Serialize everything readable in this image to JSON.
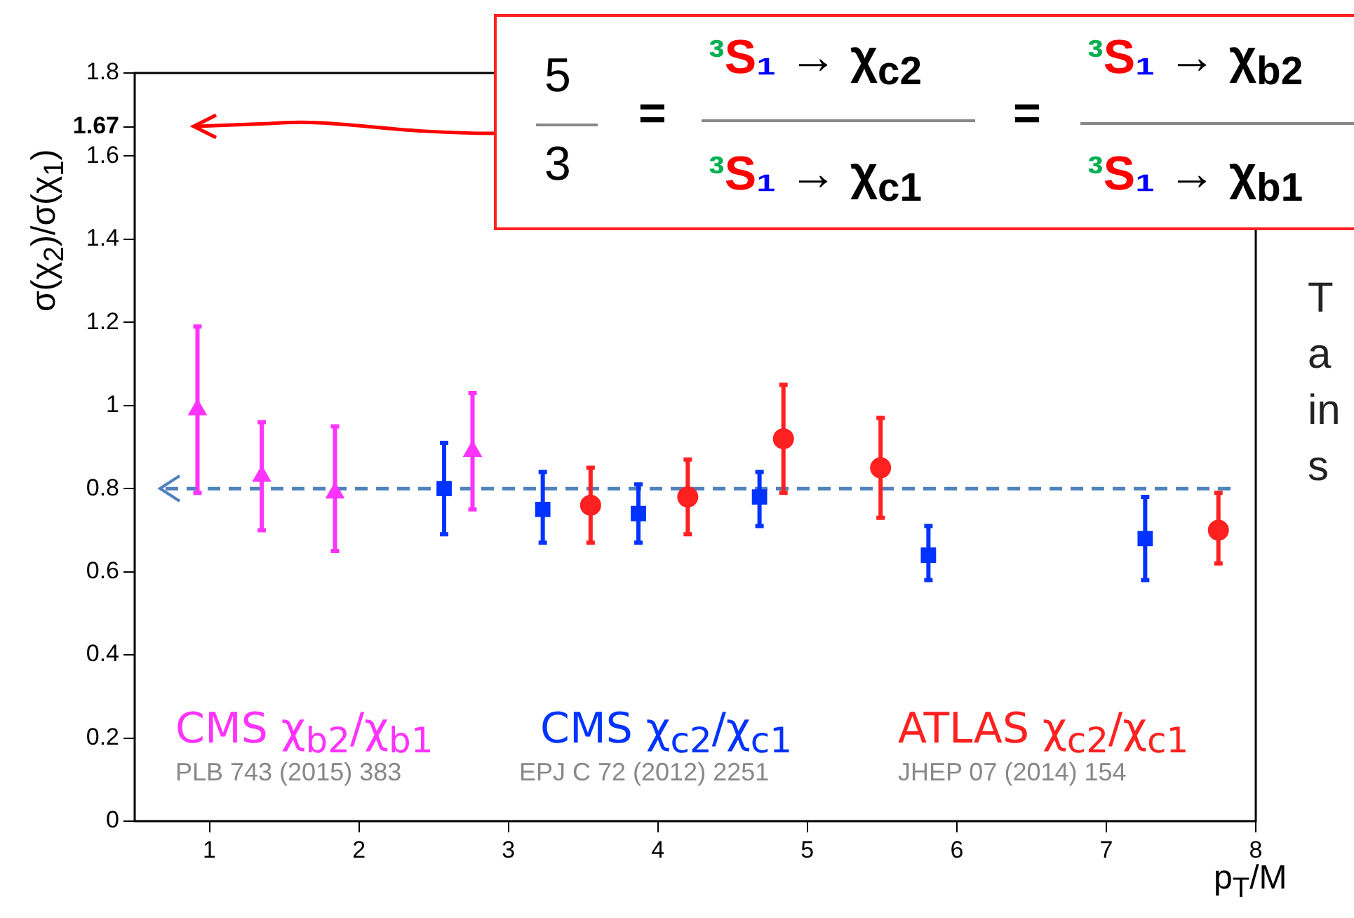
{
  "chart_data": {
    "type": "scatter",
    "xlabel": "p$_{T}$/M",
    "ylabel": "σ(χ$_{2}$)/σ(χ$_{1}$)",
    "xlim": [
      0.5,
      8
    ],
    "xticks": [
      1,
      2,
      3,
      4,
      5,
      6,
      7,
      8
    ],
    "ylim": [
      0,
      1.8
    ],
    "yticks": [
      0,
      0.2,
      0.4,
      0.6,
      0.8,
      1,
      1.2,
      1.4,
      1.6,
      {
        "value": 1.67,
        "label": "1.67"
      },
      1.8
    ],
    "grid": false,
    "legend": false,
    "series": [
      {
        "name": "CMS χ$_{b2}$/χ$_{b1}$",
        "color": "#ff33ff",
        "marker": "triangle",
        "x": [
          0.92,
          1.35,
          1.84,
          2.76
        ],
        "values": [
          0.99,
          0.83,
          0.79,
          0.89
        ],
        "errors": [
          [
            0.79,
            1.19
          ],
          [
            0.7,
            0.96
          ],
          [
            0.65,
            0.95
          ],
          [
            0.75,
            1.03
          ]
        ]
      },
      {
        "name": "CMS χ$_{c2}$/χ$_{c1}$",
        "color": "#0033ff",
        "marker": "square",
        "x": [
          2.57,
          3.23,
          3.87,
          4.68,
          5.81,
          7.26
        ],
        "values": [
          0.8,
          0.75,
          0.74,
          0.78,
          0.64,
          0.68
        ],
        "errors": [
          [
            0.69,
            0.91
          ],
          [
            0.67,
            0.84
          ],
          [
            0.67,
            0.81
          ],
          [
            0.71,
            0.84
          ],
          [
            0.58,
            0.71
          ],
          [
            0.58,
            0.78
          ]
        ]
      },
      {
        "name": "ATLAS χ$_{c2}$/χ$_{c1}$",
        "color": "#ff2020",
        "marker": "circle",
        "x": [
          3.55,
          4.2,
          4.84,
          5.49,
          7.75
        ],
        "values": [
          0.76,
          0.78,
          0.92,
          0.85,
          0.7
        ],
        "errors": [
          [
            0.67,
            0.85
          ],
          [
            0.69,
            0.87
          ],
          [
            0.79,
            1.05
          ],
          [
            0.73,
            0.97
          ],
          [
            0.62,
            0.79
          ]
        ]
      }
    ],
    "ref_lines": [
      {
        "axis": "y",
        "value": 0.8,
        "color": "#4f81bd",
        "line_style": "dashed"
      }
    ],
    "annotations": [
      "5",
      "3",
      "=",
      "³S₁ → χ$_{c2}$",
      "³S₁ → χ$_{c1}$",
      "=",
      "³S₁ → χ$_{b2}$",
      "³S₁ → χ$_{b1}$",
      "PLB 743 (2015) 383",
      "EPJ C 72 (2012) 2251",
      "JHEP 07 (2014) 154",
      "T",
      "a",
      "in",
      "s"
    ]
  }
}
